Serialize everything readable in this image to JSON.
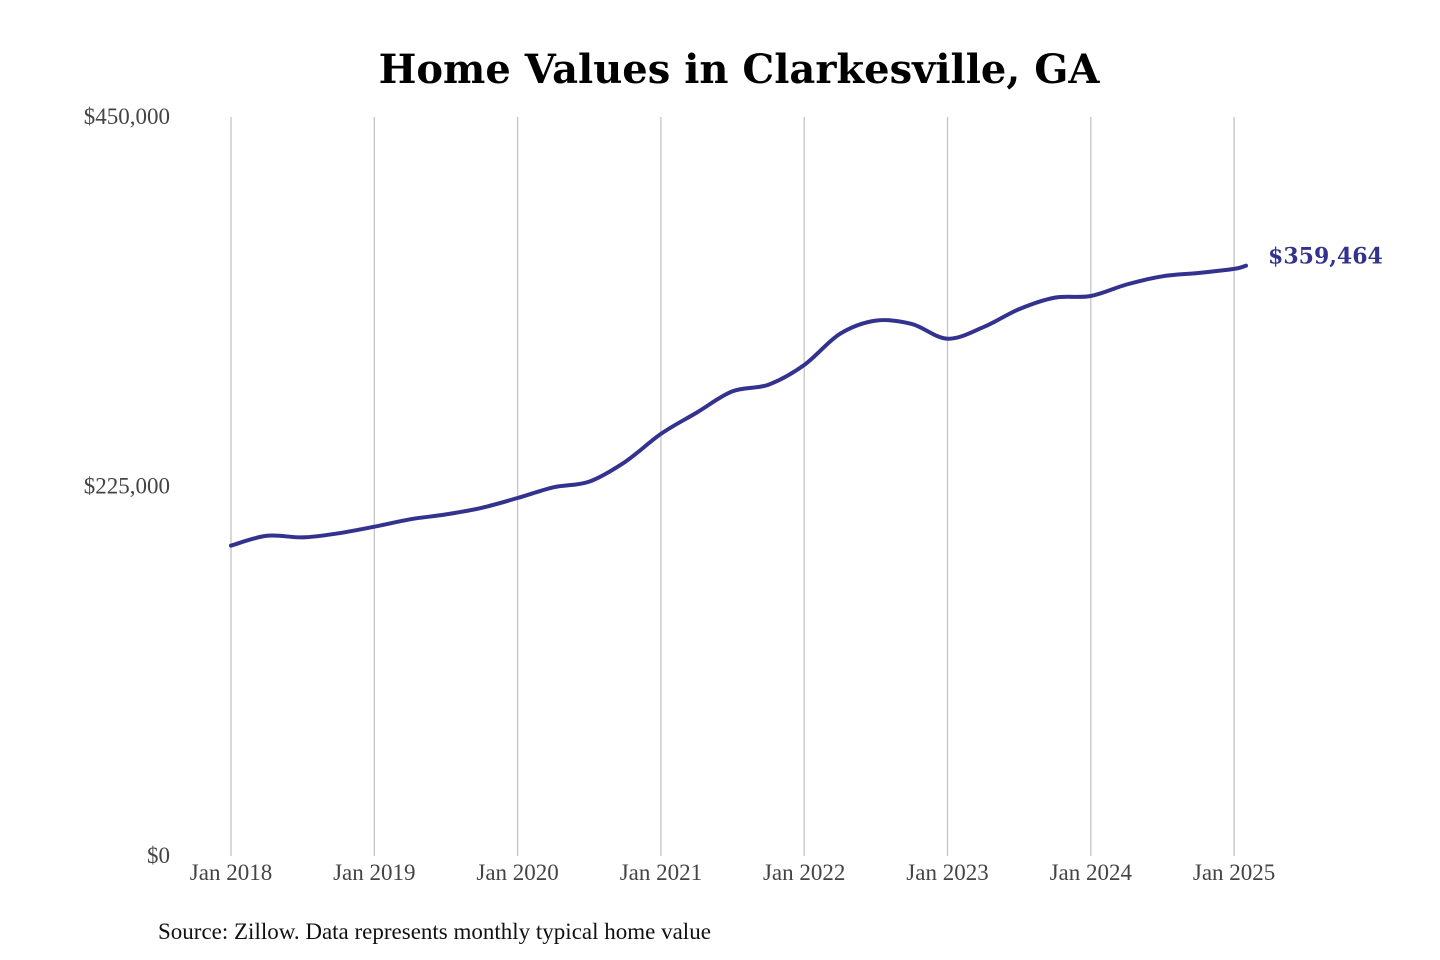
{
  "chart_data": {
    "type": "line",
    "title": "Home Values in Clarkesville, GA",
    "xlabel": "",
    "ylabel": "",
    "x_tick_labels": [
      "Jan 2018",
      "Jan 2019",
      "Jan 2020",
      "Jan 2021",
      "Jan 2022",
      "Jan 2023",
      "Jan 2024",
      "Jan 2025"
    ],
    "y_tick_labels": [
      "$0",
      "$225,000",
      "$450,000"
    ],
    "y_ticks": [
      0,
      225000,
      450000
    ],
    "ylim": [
      0,
      450000
    ],
    "grid": "vertical",
    "line_color": "#33338f",
    "end_label": "$359,464",
    "series": [
      {
        "values": [
          [
            "2018-01",
            189000
          ],
          [
            "2018-04",
            195000
          ],
          [
            "2018-07",
            194000
          ],
          [
            "2018-10",
            196500
          ],
          [
            "2019-01",
            200500
          ],
          [
            "2019-04",
            205000
          ],
          [
            "2019-07",
            208000
          ],
          [
            "2019-10",
            212000
          ],
          [
            "2020-01",
            218000
          ],
          [
            "2020-04",
            224500
          ],
          [
            "2020-07",
            228000
          ],
          [
            "2020-10",
            240000
          ],
          [
            "2021-01",
            257000
          ],
          [
            "2021-04",
            270000
          ],
          [
            "2021-07",
            283000
          ],
          [
            "2021-10",
            287000
          ],
          [
            "2022-01",
            299000
          ],
          [
            "2022-04",
            318000
          ],
          [
            "2022-07",
            326000
          ],
          [
            "2022-10",
            324000
          ],
          [
            "2023-01",
            315000
          ],
          [
            "2023-04",
            322000
          ],
          [
            "2023-07",
            333000
          ],
          [
            "2023-10",
            340000
          ],
          [
            "2024-01",
            341000
          ],
          [
            "2024-04",
            348000
          ],
          [
            "2024-07",
            353000
          ],
          [
            "2024-10",
            355000
          ],
          [
            "2025-01",
            357500
          ],
          [
            "2025-02",
            359464
          ]
        ]
      }
    ]
  },
  "source_note": "Source: Zillow. Data represents monthly typical home value"
}
